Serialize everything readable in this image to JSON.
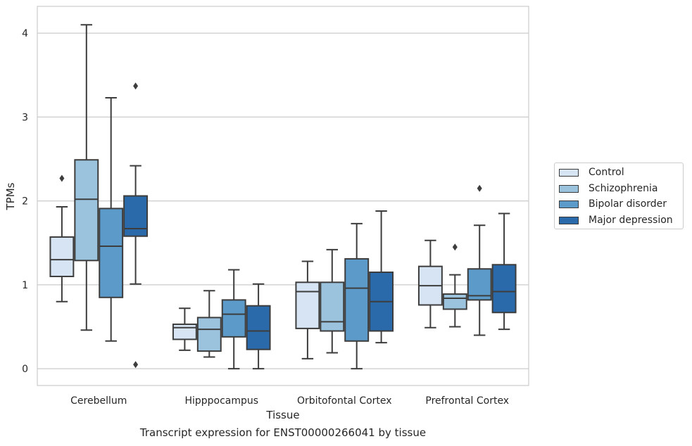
{
  "caption": "Transcript expression for ENST00000266041 by tissue",
  "chart_data": {
    "type": "box",
    "xlabel": "Tissue",
    "ylabel": "TPMs",
    "ylim": [
      -0.2,
      4.32
    ],
    "yticks": [
      0,
      1,
      2,
      3,
      4
    ],
    "grid": "horizontal",
    "legend_position": "right",
    "categories": [
      "Cerebellum",
      "Hipppocampus",
      "Orbitofontal Cortex",
      "Prefrontal Cortex"
    ],
    "series": [
      {
        "name": "Control",
        "color": "#d6e4f3",
        "boxes": [
          {
            "whislo": 0.8,
            "q1": 1.1,
            "med": 1.3,
            "q3": 1.57,
            "whishi": 1.93,
            "fliers": [
              2.27
            ]
          },
          {
            "whislo": 0.22,
            "q1": 0.35,
            "med": 0.49,
            "q3": 0.53,
            "whishi": 0.72,
            "fliers": []
          },
          {
            "whislo": 0.12,
            "q1": 0.48,
            "med": 0.92,
            "q3": 1.03,
            "whishi": 1.28,
            "fliers": []
          },
          {
            "whislo": 0.49,
            "q1": 0.76,
            "med": 0.99,
            "q3": 1.22,
            "whishi": 1.53,
            "fliers": []
          }
        ]
      },
      {
        "name": "Schizophrenia",
        "color": "#9cc3dd",
        "boxes": [
          {
            "whislo": 0.46,
            "q1": 1.29,
            "med": 2.02,
            "q3": 2.49,
            "whishi": 4.1,
            "fliers": []
          },
          {
            "whislo": 0.14,
            "q1": 0.21,
            "med": 0.47,
            "q3": 0.61,
            "whishi": 0.93,
            "fliers": []
          },
          {
            "whislo": 0.19,
            "q1": 0.45,
            "med": 0.56,
            "q3": 1.03,
            "whishi": 1.42,
            "fliers": []
          },
          {
            "whislo": 0.5,
            "q1": 0.71,
            "med": 0.84,
            "q3": 0.89,
            "whishi": 1.12,
            "fliers": [
              1.45
            ]
          }
        ]
      },
      {
        "name": "Bipolar disorder",
        "color": "#5b9ac9",
        "boxes": [
          {
            "whislo": 0.33,
            "q1": 0.85,
            "med": 1.46,
            "q3": 1.91,
            "whishi": 3.23,
            "fliers": []
          },
          {
            "whislo": 0.0,
            "q1": 0.38,
            "med": 0.65,
            "q3": 0.82,
            "whishi": 1.18,
            "fliers": []
          },
          {
            "whislo": 0.0,
            "q1": 0.33,
            "med": 0.96,
            "q3": 1.31,
            "whishi": 1.73,
            "fliers": []
          },
          {
            "whislo": 0.4,
            "q1": 0.82,
            "med": 0.87,
            "q3": 1.19,
            "whishi": 1.71,
            "fliers": [
              2.15
            ]
          }
        ]
      },
      {
        "name": "Major depression",
        "color": "#2a6aab",
        "boxes": [
          {
            "whislo": 1.01,
            "q1": 1.58,
            "med": 1.67,
            "q3": 2.06,
            "whishi": 2.42,
            "fliers": [
              3.37,
              0.05
            ]
          },
          {
            "whislo": 0.0,
            "q1": 0.23,
            "med": 0.45,
            "q3": 0.75,
            "whishi": 1.01,
            "fliers": []
          },
          {
            "whislo": 0.31,
            "q1": 0.45,
            "med": 0.8,
            "q3": 1.15,
            "whishi": 1.88,
            "fliers": []
          },
          {
            "whislo": 0.47,
            "q1": 0.67,
            "med": 0.92,
            "q3": 1.24,
            "whishi": 1.85,
            "fliers": []
          }
        ]
      }
    ]
  }
}
